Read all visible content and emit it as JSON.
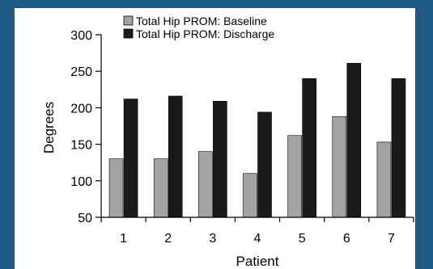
{
  "chart_data": {
    "type": "bar",
    "categories": [
      "1",
      "2",
      "3",
      "4",
      "5",
      "6",
      "7"
    ],
    "series": [
      {
        "name": "Total Hip PROM: Baseline",
        "values": [
          130,
          130,
          140,
          110,
          162,
          188,
          153
        ],
        "color": "#a3a3a3"
      },
      {
        "name": "Total Hip PROM: Discharge",
        "values": [
          212,
          216,
          209,
          194,
          240,
          261,
          240
        ],
        "color": "#1a1a1a"
      }
    ],
    "xlabel": "Patient",
    "ylabel": "Degrees",
    "ylim": [
      50,
      300
    ],
    "yticks": [
      50,
      100,
      150,
      200,
      250,
      300
    ],
    "grid": false,
    "legend_position": "top"
  },
  "colors": {
    "frame": "#1f5a84",
    "panel": "#ffffff"
  }
}
